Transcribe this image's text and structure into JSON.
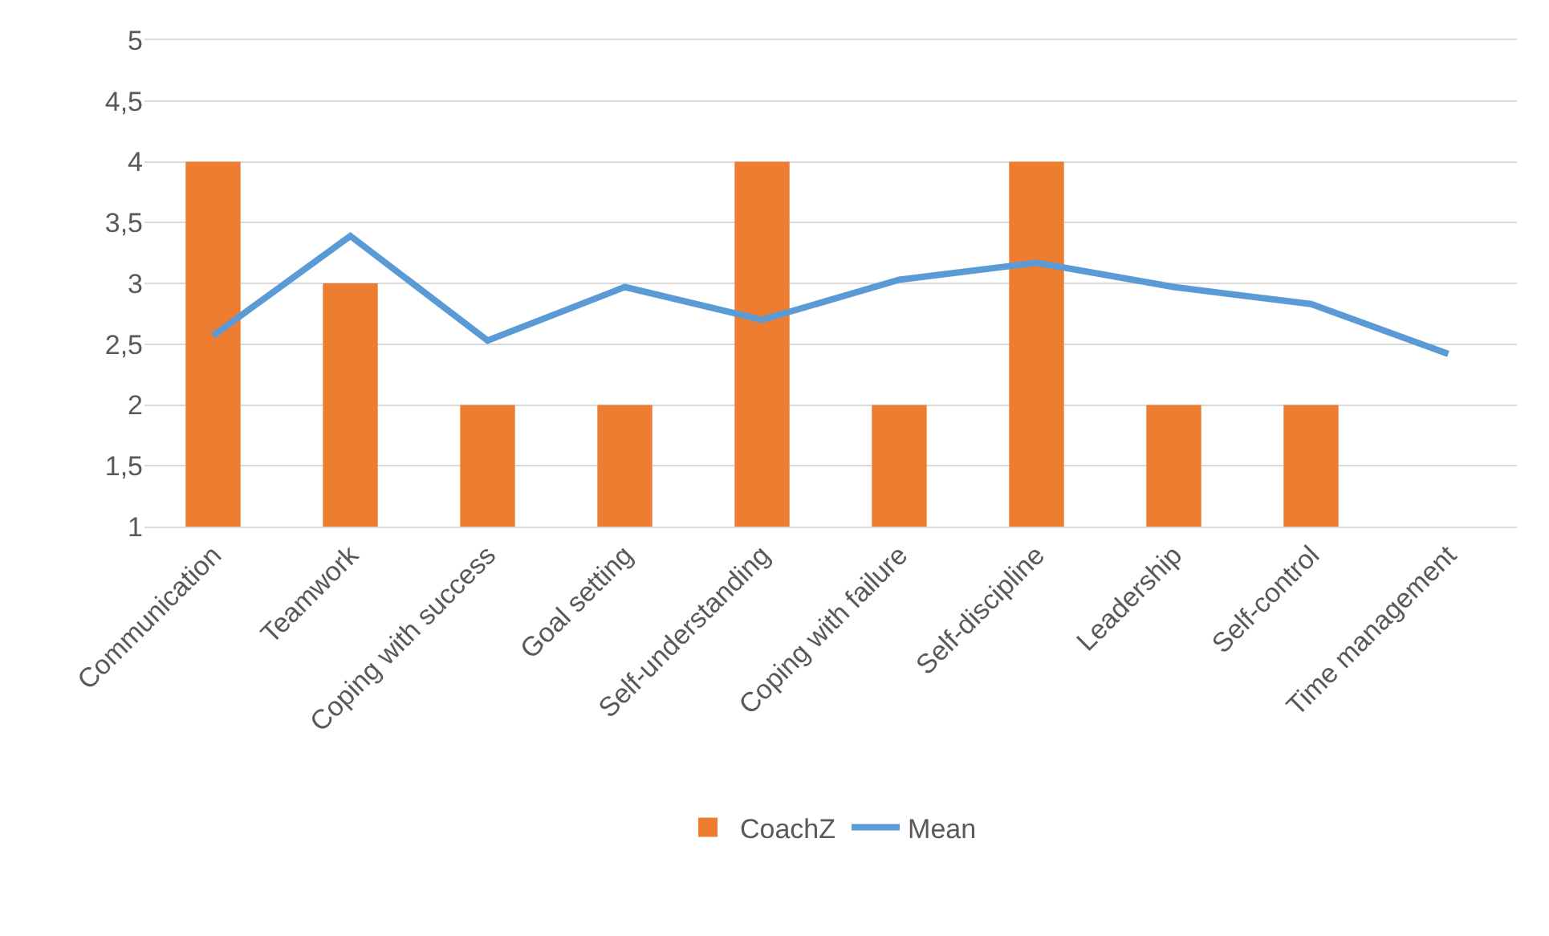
{
  "chart_data": {
    "type": "bar",
    "categories": [
      "Communication",
      "Teamwork",
      "Coping with success",
      "Goal setting",
      "Self-understanding",
      "Coping with failure",
      "Self-discipline",
      "Leadership",
      "Self-control",
      "Time management"
    ],
    "series": [
      {
        "name": "CoachZ",
        "color": "#ed7d31",
        "values": [
          4,
          3,
          2,
          2,
          4,
          2,
          4,
          2,
          2,
          null
        ]
      },
      {
        "name": "Mean",
        "type": "line",
        "color": "#5b9bd5",
        "values": [
          2.57,
          3.39,
          2.53,
          2.97,
          2.7,
          3.03,
          3.17,
          2.97,
          2.83,
          2.42
        ]
      }
    ],
    "ylim": [
      1,
      5
    ],
    "yticks": [
      1,
      {
        "value": 1.5,
        "label": "1,5"
      },
      2,
      {
        "value": 2.5,
        "label": "2,5"
      },
      3,
      {
        "value": 3.5,
        "label": "3,5"
      },
      4,
      {
        "value": 4.5,
        "label": "4,5"
      },
      5
    ],
    "grid": "y",
    "legend": "bottom",
    "marker": "none"
  }
}
